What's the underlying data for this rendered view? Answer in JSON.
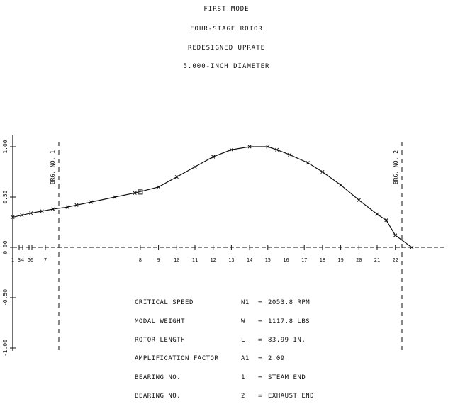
{
  "titles": [
    "FIRST MODE",
    "FOUR-STAGE ROTOR",
    "REDESIGNED UPRATE",
    "5.000-INCH DIAMETER"
  ],
  "chart_data": {
    "type": "line",
    "title": "FIRST MODE",
    "ylim": [
      -1.0,
      1.0
    ],
    "xlim": [
      0,
      22.5
    ],
    "yticks": [
      "1.00",
      "0.50",
      "0.00",
      "-0.50",
      "-1.00"
    ],
    "station_labels": [
      "1",
      "3",
      "4",
      "5",
      "6",
      "7",
      "8",
      "9",
      "10",
      "11",
      "12",
      "13",
      "14",
      "15",
      "16",
      "17",
      "18",
      "19",
      "20",
      "21",
      "22"
    ],
    "bearings": [
      {
        "label": "BRG. NO. 1",
        "station": 8
      },
      {
        "label": "BRG. NO. 2",
        "station": 21
      }
    ],
    "series": [
      {
        "x": [
          0,
          0.5,
          1,
          1.6,
          2.2,
          3,
          3.5,
          4.3,
          5.6,
          6.7,
          8,
          9,
          10,
          11,
          12,
          13,
          14,
          14.5,
          15.2,
          16.2,
          17,
          18,
          19,
          20,
          20.5,
          21,
          21.9
        ],
        "y": [
          0.3,
          0.32,
          0.34,
          0.36,
          0.38,
          0.4,
          0.42,
          0.45,
          0.5,
          0.54,
          0.6,
          0.7,
          0.8,
          0.9,
          0.97,
          1.0,
          1.0,
          0.97,
          0.92,
          0.84,
          0.75,
          0.62,
          0.47,
          0.33,
          0.27,
          0.12,
          0.0
        ]
      }
    ]
  },
  "info": [
    {
      "label": "CRITICAL SPEED",
      "symbol": "N1",
      "eq": "=",
      "value": "2053.8 RPM"
    },
    {
      "label": "MODAL WEIGHT",
      "symbol": "W",
      "eq": "=",
      "value": "1117.8 LBS"
    },
    {
      "label": "ROTOR LENGTH",
      "symbol": "L",
      "eq": "=",
      "value": "83.99 IN."
    },
    {
      "label": "AMPLIFICATION FACTOR",
      "symbol": "A1",
      "eq": "=",
      "value": "2.09"
    },
    {
      "label": "BEARING NO.",
      "symbol": "1",
      "eq": "=",
      "value": "STEAM END"
    },
    {
      "label": "BEARING NO.",
      "symbol": "2",
      "eq": "=",
      "value": "EXHAUST END"
    }
  ]
}
